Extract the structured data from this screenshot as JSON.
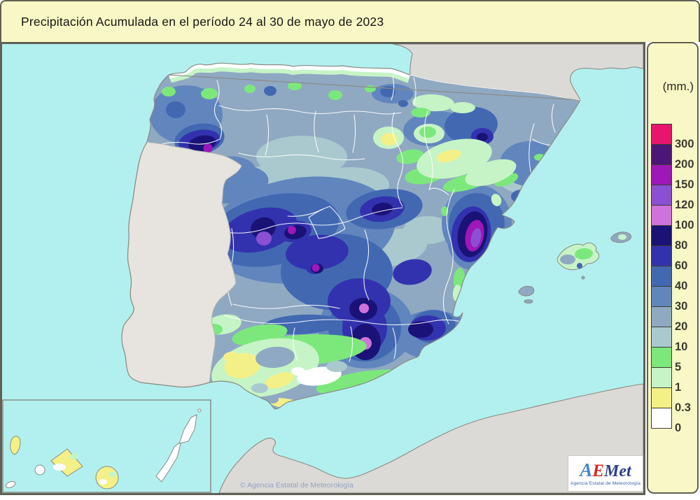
{
  "title": "Precipitación Acumulada en el período 24 al 30 de mayo de 2023",
  "legend": {
    "unit_label": "(mm.)",
    "items": [
      {
        "value": "300",
        "color": "#E8156E"
      },
      {
        "value": "200",
        "color": "#4B1678"
      },
      {
        "value": "150",
        "color": "#9E17B8"
      },
      {
        "value": "120",
        "color": "#8B4FD4"
      },
      {
        "value": "100",
        "color": "#CF72DC"
      },
      {
        "value": "80",
        "color": "#1A1276"
      },
      {
        "value": "60",
        "color": "#3232AE"
      },
      {
        "value": "40",
        "color": "#4268B2"
      },
      {
        "value": "30",
        "color": "#6186BE"
      },
      {
        "value": "20",
        "color": "#8FA9C2"
      },
      {
        "value": "10",
        "color": "#A9C9CE"
      },
      {
        "value": "5",
        "color": "#7CE87C"
      },
      {
        "value": "1",
        "color": "#C6F4C6"
      },
      {
        "value": "0.3",
        "color": "#F4F088"
      },
      {
        "value": "0",
        "color": "#FFFFFF"
      }
    ]
  },
  "map": {
    "copyright": "© Agencia Estatal de Meteorología",
    "logo": {
      "part_a": "A",
      "part_e": "E",
      "part_met": "Met",
      "caption": "Agencia Estatal de Meteorología"
    }
  },
  "colors": {
    "sea": "#B2F0EF",
    "land_neutral": "#DCDAD6",
    "portugal": "#E7E3DF",
    "panel_bg": "#F8F8C6",
    "border_dark": "#606056",
    "coastline": "#8A8A82",
    "province_line": "#FFFFFF",
    "copyright_color": "#93A2C6",
    "logo_blue": "#4A85C8",
    "logo_red": "#D3281E",
    "logo_navy": "#2B3E8C",
    "logo_caption_color": "#3A5BA8"
  }
}
